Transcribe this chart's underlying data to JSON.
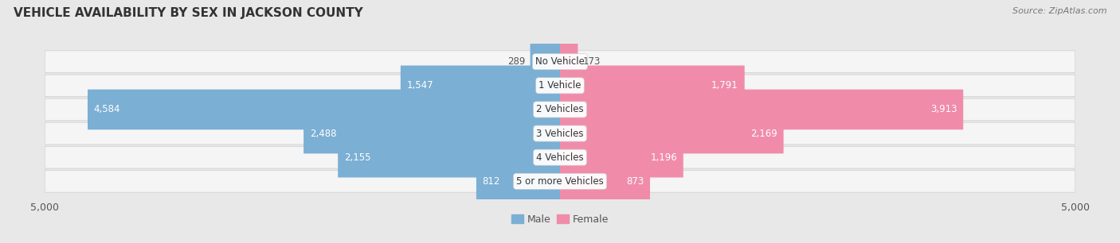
{
  "title": "VEHICLE AVAILABILITY BY SEX IN JACKSON COUNTY",
  "source": "Source: ZipAtlas.com",
  "categories": [
    "No Vehicle",
    "1 Vehicle",
    "2 Vehicles",
    "3 Vehicles",
    "4 Vehicles",
    "5 or more Vehicles"
  ],
  "male_values": [
    289,
    1547,
    4584,
    2488,
    2155,
    812
  ],
  "female_values": [
    173,
    1791,
    3913,
    2169,
    1196,
    873
  ],
  "male_color": "#7bafd4",
  "female_color": "#f08caa",
  "male_label": "Male",
  "female_label": "Female",
  "axis_max": 5000,
  "background_color": "#e8e8e8",
  "row_bg_color": "#f2f2f2",
  "label_color_inside": "#ffffff",
  "label_color_outside": "#555555",
  "title_fontsize": 11,
  "label_fontsize": 8.5,
  "category_fontsize": 8.5,
  "axis_label_fontsize": 9
}
